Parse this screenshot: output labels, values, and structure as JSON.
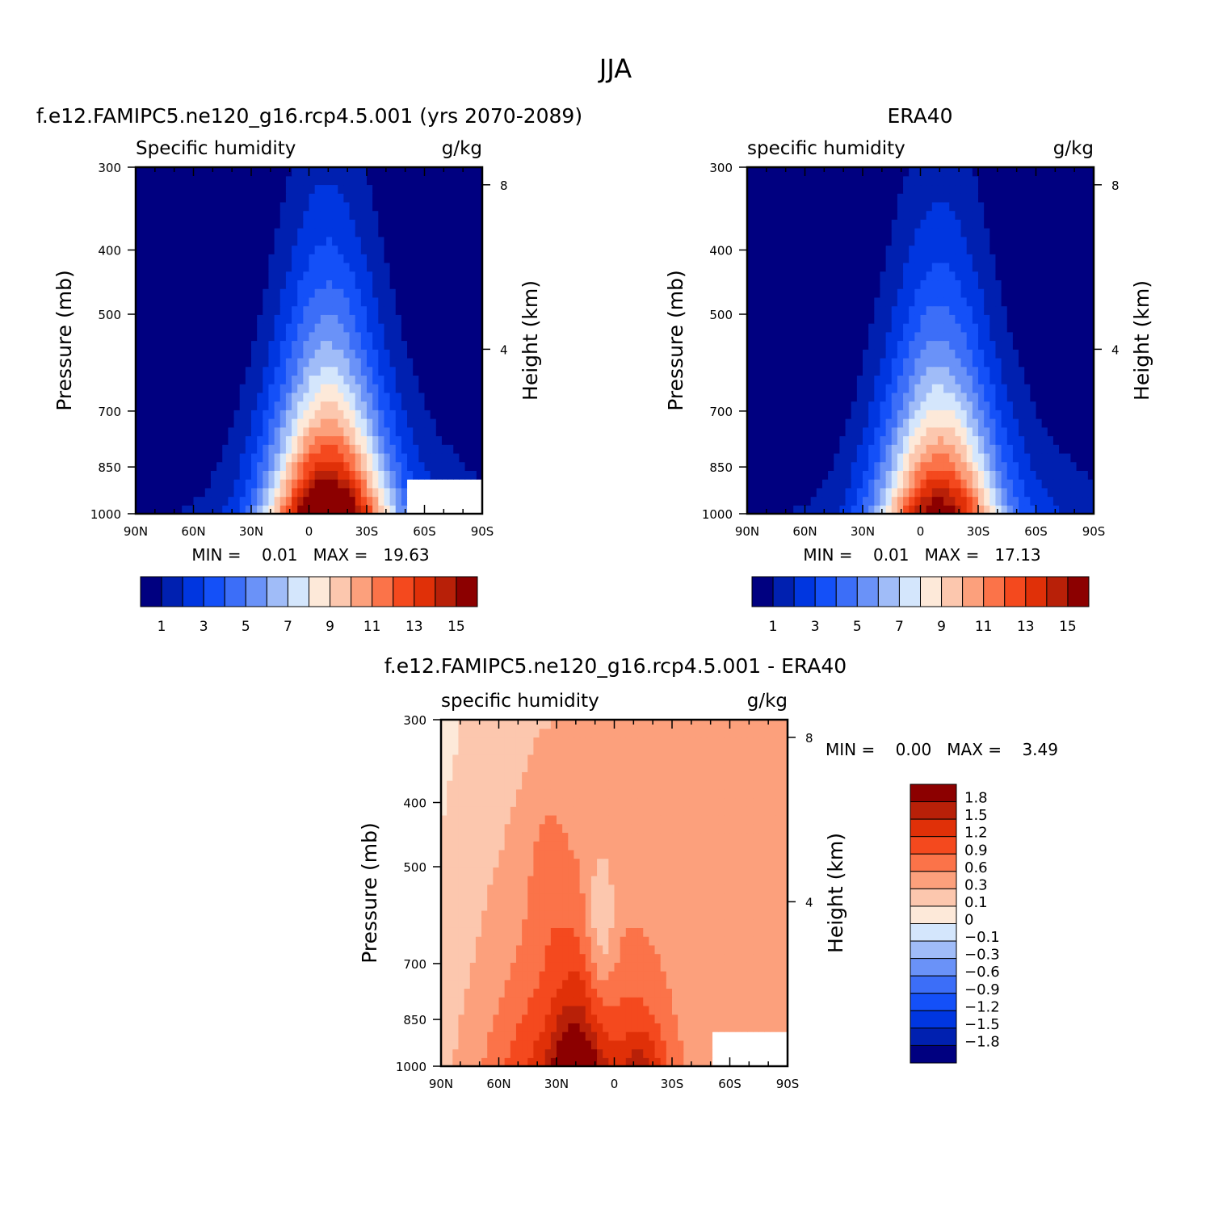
{
  "figure": {
    "title": "JJA"
  },
  "chart_data": [
    {
      "type": "heatmap",
      "panel_title": "f.e12.FAMIPC5.ne120_g16.rcp4.5.001 (yrs 2070-2089)",
      "variable": "Specific humidity",
      "units": "g/kg",
      "ylabel": "Pressure (mb)",
      "ylabel_right": "Height (km)",
      "x_ticks": [
        "90N",
        "60N",
        "30N",
        "0",
        "30S",
        "60S",
        "90S"
      ],
      "x_range": [
        90,
        -90
      ],
      "y_ticks": [
        "300",
        "400",
        "500",
        "700",
        "850",
        "1000"
      ],
      "y_range": [
        1000,
        300
      ],
      "y_right_ticks": [
        "8",
        "4"
      ],
      "stats_label": "MIN =    0.01   MAX =   19.63",
      "min": 0.01,
      "max": 19.63,
      "contour_levels": [
        1,
        2,
        3,
        4,
        5,
        6,
        7,
        8,
        9,
        10,
        11,
        12,
        13,
        14,
        15
      ],
      "colorbar_labels": [
        "1",
        "3",
        "5",
        "7",
        "9",
        "11",
        "13",
        "15"
      ],
      "peak_latitude": -10,
      "missing_region": "south of 50S below ~880 mb"
    },
    {
      "type": "heatmap",
      "panel_title": "ERA40",
      "variable": "specific humidity",
      "units": "g/kg",
      "ylabel": "Pressure (mb)",
      "ylabel_right": "Height (km)",
      "x_ticks": [
        "90N",
        "60N",
        "30N",
        "0",
        "30S",
        "60S",
        "90S"
      ],
      "x_range": [
        90,
        -90
      ],
      "y_ticks": [
        "300",
        "400",
        "500",
        "700",
        "850",
        "1000"
      ],
      "y_range": [
        1000,
        300
      ],
      "y_right_ticks": [
        "8",
        "4"
      ],
      "stats_label": "MIN =    0.01   MAX =   17.13",
      "min": 0.01,
      "max": 17.13,
      "contour_levels": [
        1,
        2,
        3,
        4,
        5,
        6,
        7,
        8,
        9,
        10,
        11,
        12,
        13,
        14,
        15
      ],
      "colorbar_labels": [
        "1",
        "3",
        "5",
        "7",
        "9",
        "11",
        "13",
        "15"
      ],
      "peak_latitude": -10
    },
    {
      "type": "heatmap",
      "panel_title": "f.e12.FAMIPC5.ne120_g16.rcp4.5.001 - ERA40",
      "variable": "specific humidity",
      "units": "g/kg",
      "ylabel": "Pressure (mb)",
      "ylabel_right": "Height (km)",
      "x_ticks": [
        "90N",
        "60N",
        "30N",
        "0",
        "30S",
        "60S",
        "90S"
      ],
      "x_range": [
        90,
        -90
      ],
      "y_ticks": [
        "300",
        "400",
        "500",
        "700",
        "850",
        "1000"
      ],
      "y_range": [
        1000,
        300
      ],
      "y_right_ticks": [
        "8",
        "4"
      ],
      "stats_label": "MIN =    0.00   MAX =    3.49",
      "min": 0.0,
      "max": 3.49,
      "contour_levels": [
        -1.8,
        -1.5,
        -1.2,
        -0.9,
        -0.6,
        -0.3,
        -0.1,
        0,
        0.1,
        0.3,
        0.6,
        0.9,
        1.2,
        1.5,
        1.8
      ],
      "colorbar_labels": [
        "1.8",
        "1.5",
        "1.2",
        "0.9",
        "0.6",
        "0.3",
        "0.1",
        "0",
        "−0.1",
        "−0.3",
        "−0.6",
        "−0.9",
        "−1.2",
        "−1.5",
        "−1.8"
      ],
      "missing_region": "south of 50S below ~880 mb"
    }
  ],
  "palettes": {
    "humidity": [
      "#000080",
      "#0020b0",
      "#0036e0",
      "#1450f8",
      "#3c6ef8",
      "#6a92f8",
      "#a0bcf8",
      "#d4e6fc",
      "#fde9d9",
      "#fcc7ae",
      "#fca07c",
      "#fb7349",
      "#f4491e",
      "#e03008",
      "#b82008",
      "#8c0000"
    ],
    "difference": [
      "#000080",
      "#0020b0",
      "#0036e0",
      "#1450f8",
      "#3c6ef8",
      "#6a92f8",
      "#a0bcf8",
      "#d4e6fc",
      "#fde9d9",
      "#fcc7ae",
      "#fca07c",
      "#fb7349",
      "#f4491e",
      "#e03008",
      "#b82008",
      "#8c0000"
    ]
  }
}
